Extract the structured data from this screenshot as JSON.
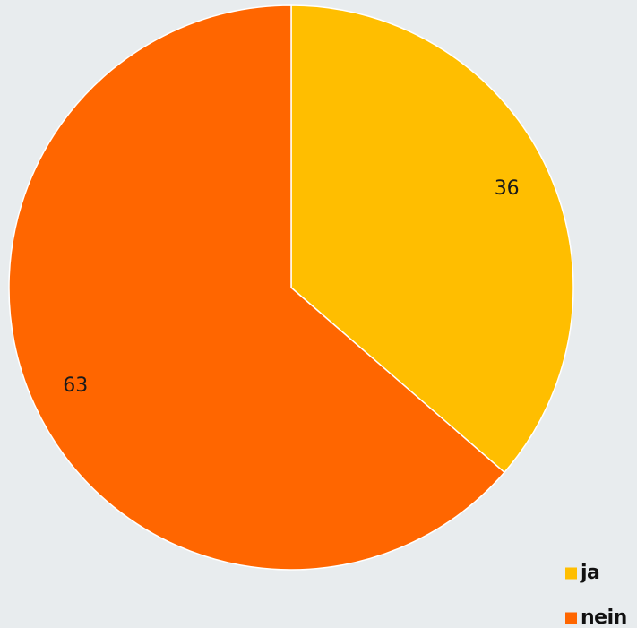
{
  "chart_data": {
    "type": "pie",
    "categories": [
      "ja",
      "nein"
    ],
    "values": [
      36,
      63
    ],
    "colors": [
      "#ffbe00",
      "#ff6600"
    ],
    "start_angle_deg": 0,
    "direction": "clockwise",
    "legend_position": "bottom-right",
    "background": "#e8ecee"
  }
}
